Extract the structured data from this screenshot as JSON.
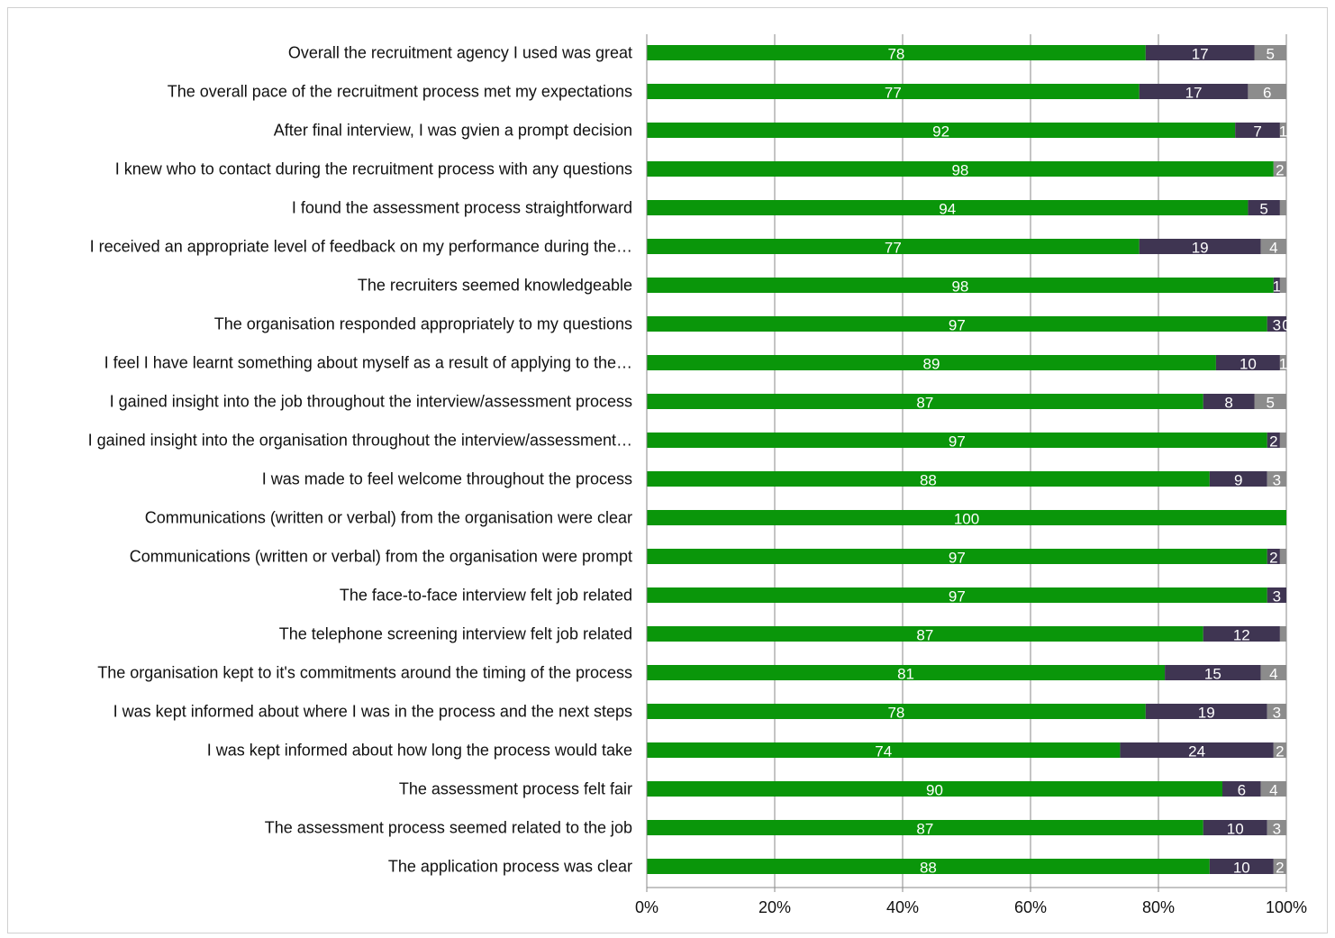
{
  "chart_data": {
    "type": "bar",
    "orientation": "horizontal",
    "stacked": "percent",
    "title": "",
    "xlabel": "",
    "ylabel": "",
    "xlim": [
      0,
      100
    ],
    "x_ticks": [
      "0%",
      "20%",
      "40%",
      "60%",
      "80%",
      "100%"
    ],
    "grid": "vertical",
    "legend": "none",
    "categories": [
      "Overall the recruitment agency I used was great",
      "The overall pace of the recruitment process met my expectations",
      "After final interview, I was gvien a prompt decision",
      "I knew who to contact during the recruitment process with any questions",
      "I found the assessment process straightforward",
      "I received an appropriate level of feedback on my performance during the…",
      "The recruiters seemed knowledgeable",
      "The organisation responded appropriately to my questions",
      "I feel I have learnt something about myself as a result of applying to the…",
      "I gained insight into the job throughout the interview/assessment process",
      "I gained insight into the organisation throughout the interview/assessment…",
      "I was made to feel welcome throughout the process",
      "Communications (written or verbal) from the organisation were clear",
      "Communications (written or verbal) from the organisation were prompt",
      "The face-to-face interview felt job related",
      "The telephone screening interview felt job related",
      "The organisation kept to it's commitments around the timing of the process",
      "I was kept informed about where I was in the process and the next steps",
      "I was kept informed about how long the process would take",
      "The assessment process felt fair",
      "The assessment process seemed related to the job",
      "The application process was clear"
    ],
    "series": [
      {
        "color": "#0a960a",
        "values": [
          78,
          77,
          92,
          98,
          94,
          77,
          98,
          97,
          89,
          87,
          97,
          88,
          100,
          97,
          97,
          87,
          81,
          78,
          74,
          90,
          87,
          88
        ],
        "labels": [
          "78",
          "77",
          "92",
          "98",
          "94",
          "77",
          "98",
          "97",
          "89",
          "87",
          "97",
          "88",
          "100",
          "97",
          "97",
          "87",
          "81",
          "78",
          "74",
          "90",
          "87",
          "88"
        ]
      },
      {
        "color": "#3f3552",
        "values": [
          17,
          17,
          7,
          0,
          5,
          19,
          1,
          3,
          10,
          8,
          2,
          9,
          0,
          2,
          3,
          12,
          15,
          19,
          24,
          6,
          10,
          10
        ],
        "labels": [
          "17",
          "17",
          "7",
          "",
          "5",
          "19",
          "1",
          "3",
          "10",
          "8",
          "2",
          "9",
          "",
          "2",
          "3",
          "12",
          "15",
          "19",
          "24",
          "6",
          "10",
          "10"
        ]
      },
      {
        "color": "#8c8c8c",
        "values": [
          5,
          6,
          1,
          2,
          1,
          4,
          1,
          0,
          1,
          5,
          1,
          3,
          0,
          1,
          0,
          1,
          4,
          3,
          2,
          4,
          3,
          2
        ],
        "labels": [
          "5",
          "6",
          "1",
          "2",
          "",
          "4",
          "",
          "0",
          "1",
          "5",
          "",
          "3",
          "",
          "",
          "",
          "",
          "4",
          "3",
          "2",
          "4",
          "3",
          "2"
        ]
      }
    ]
  }
}
